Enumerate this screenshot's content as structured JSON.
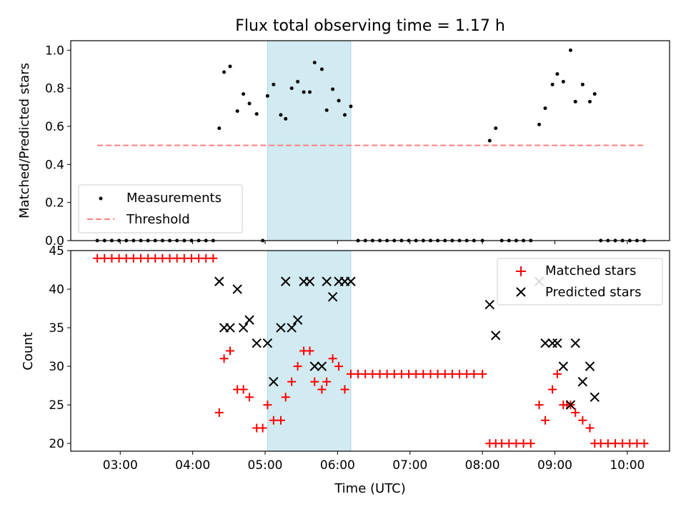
{
  "figure": {
    "title": "Flux total observing time = 1.17 h"
  },
  "colors": {
    "measurement": "#000000",
    "threshold": "#ff7f7f",
    "matched": "#ff0000",
    "predicted": "#000000",
    "shade": "#add8e6"
  },
  "chart_data": [
    {
      "type": "scatter",
      "panel": "top",
      "xlabel": "",
      "ylabel": "Matched/Predicted stars",
      "xlim": [
        "02:19",
        "10:35"
      ],
      "ylim": [
        0,
        1.05
      ],
      "yticks": [
        "0.0",
        "0.2",
        "0.4",
        "0.6",
        "0.8",
        "1.0"
      ],
      "shaded_interval": [
        "05:02",
        "06:11"
      ],
      "legend": {
        "placement": "lower left",
        "entries": [
          "Measurements",
          "Threshold"
        ]
      },
      "series": [
        {
          "name": "Measurements",
          "marker": "dot",
          "points": [
            [
              "02:41",
              0
            ],
            [
              "02:47",
              0
            ],
            [
              "02:53",
              0
            ],
            [
              "02:59",
              0
            ],
            [
              "03:05",
              0
            ],
            [
              "03:11",
              0
            ],
            [
              "03:17",
              0
            ],
            [
              "03:23",
              0
            ],
            [
              "03:29",
              0
            ],
            [
              "03:35",
              0
            ],
            [
              "03:41",
              0
            ],
            [
              "03:47",
              0
            ],
            [
              "03:53",
              0
            ],
            [
              "03:59",
              0
            ],
            [
              "04:05",
              0
            ],
            [
              "04:11",
              0
            ],
            [
              "04:17",
              0
            ],
            [
              "04:22",
              0.59
            ],
            [
              "04:26",
              0.885
            ],
            [
              "04:31",
              0.915
            ],
            [
              "04:37",
              0.68
            ],
            [
              "04:42",
              0.77
            ],
            [
              "04:47",
              0.72
            ],
            [
              "04:53",
              0.665
            ],
            [
              "04:58",
              0
            ],
            [
              "05:02",
              0.76
            ],
            [
              "05:07",
              0.82
            ],
            [
              "05:13",
              0.66
            ],
            [
              "05:17",
              0.64
            ],
            [
              "05:22",
              0.8
            ],
            [
              "05:27",
              0.835
            ],
            [
              "05:32",
              0.78
            ],
            [
              "05:37",
              0.78
            ],
            [
              "05:41",
              0.935
            ],
            [
              "05:47",
              0.9
            ],
            [
              "05:51",
              0.685
            ],
            [
              "05:56",
              0.795
            ],
            [
              "06:01",
              0.735
            ],
            [
              "06:06",
              0.66
            ],
            [
              "06:11",
              0.705
            ],
            [
              "06:17",
              0
            ],
            [
              "06:23",
              0
            ],
            [
              "06:29",
              0
            ],
            [
              "06:35",
              0
            ],
            [
              "06:41",
              0
            ],
            [
              "06:47",
              0
            ],
            [
              "06:53",
              0
            ],
            [
              "06:59",
              0
            ],
            [
              "07:05",
              0
            ],
            [
              "07:11",
              0
            ],
            [
              "07:17",
              0
            ],
            [
              "07:23",
              0
            ],
            [
              "07:29",
              0
            ],
            [
              "07:35",
              0
            ],
            [
              "07:41",
              0
            ],
            [
              "07:47",
              0
            ],
            [
              "07:53",
              0
            ],
            [
              "08:00",
              0
            ],
            [
              "08:06",
              0.525
            ],
            [
              "08:11",
              0.59
            ],
            [
              "08:16",
              0
            ],
            [
              "08:22",
              0
            ],
            [
              "08:28",
              0
            ],
            [
              "08:34",
              0
            ],
            [
              "08:40",
              0
            ],
            [
              "08:47",
              0.61
            ],
            [
              "08:52",
              0.695
            ],
            [
              "08:58",
              0.82
            ],
            [
              "09:02",
              0.875
            ],
            [
              "09:07",
              0.835
            ],
            [
              "09:13",
              1.0
            ],
            [
              "09:17",
              0.73
            ],
            [
              "09:23",
              0.82
            ],
            [
              "09:29",
              0.73
            ],
            [
              "09:33",
              0.77
            ],
            [
              "09:38",
              0
            ],
            [
              "09:44",
              0
            ],
            [
              "09:50",
              0
            ],
            [
              "09:56",
              0
            ],
            [
              "10:02",
              0
            ],
            [
              "10:08",
              0
            ],
            [
              "10:14",
              0
            ]
          ]
        },
        {
          "name": "Threshold",
          "style": "dashed",
          "points": [
            [
              "02:41",
              0.5
            ],
            [
              "10:14",
              0.5
            ]
          ]
        }
      ]
    },
    {
      "type": "scatter",
      "panel": "bottom",
      "xlabel": "Time (UTC)",
      "ylabel": "Count",
      "xlim": [
        "02:19",
        "10:35"
      ],
      "ylim": [
        19,
        45
      ],
      "xticks": [
        "03:00",
        "04:00",
        "05:00",
        "06:00",
        "07:00",
        "08:00",
        "09:00",
        "10:00"
      ],
      "yticks": [
        "20",
        "25",
        "30",
        "35",
        "40",
        "45"
      ],
      "shaded_interval": [
        "05:02",
        "06:11"
      ],
      "legend": {
        "placement": "upper right",
        "entries": [
          "Matched stars",
          "Predicted stars"
        ]
      },
      "series": [
        {
          "name": "Matched stars",
          "marker": "plus",
          "points": [
            [
              "02:41",
              44
            ],
            [
              "02:47",
              44
            ],
            [
              "02:53",
              44
            ],
            [
              "02:59",
              44
            ],
            [
              "03:05",
              44
            ],
            [
              "03:11",
              44
            ],
            [
              "03:17",
              44
            ],
            [
              "03:23",
              44
            ],
            [
              "03:29",
              44
            ],
            [
              "03:35",
              44
            ],
            [
              "03:41",
              44
            ],
            [
              "03:47",
              44
            ],
            [
              "03:53",
              44
            ],
            [
              "03:59",
              44
            ],
            [
              "04:05",
              44
            ],
            [
              "04:11",
              44
            ],
            [
              "04:17",
              44
            ],
            [
              "04:22",
              24
            ],
            [
              "04:26",
              31
            ],
            [
              "04:31",
              32
            ],
            [
              "04:37",
              27
            ],
            [
              "04:42",
              27
            ],
            [
              "04:47",
              26
            ],
            [
              "04:53",
              22
            ],
            [
              "04:58",
              22
            ],
            [
              "05:02",
              25
            ],
            [
              "05:07",
              23
            ],
            [
              "05:13",
              23
            ],
            [
              "05:17",
              26
            ],
            [
              "05:22",
              28
            ],
            [
              "05:27",
              30
            ],
            [
              "05:32",
              32
            ],
            [
              "05:37",
              32
            ],
            [
              "05:41",
              28
            ],
            [
              "05:47",
              27
            ],
            [
              "05:51",
              28
            ],
            [
              "05:56",
              31
            ],
            [
              "06:01",
              30
            ],
            [
              "06:06",
              27
            ],
            [
              "06:11",
              29
            ],
            [
              "06:17",
              29
            ],
            [
              "06:23",
              29
            ],
            [
              "06:29",
              29
            ],
            [
              "06:35",
              29
            ],
            [
              "06:41",
              29
            ],
            [
              "06:47",
              29
            ],
            [
              "06:53",
              29
            ],
            [
              "06:59",
              29
            ],
            [
              "07:05",
              29
            ],
            [
              "07:11",
              29
            ],
            [
              "07:17",
              29
            ],
            [
              "07:23",
              29
            ],
            [
              "07:29",
              29
            ],
            [
              "07:35",
              29
            ],
            [
              "07:41",
              29
            ],
            [
              "07:47",
              29
            ],
            [
              "07:53",
              29
            ],
            [
              "08:00",
              29
            ],
            [
              "08:06",
              20
            ],
            [
              "08:11",
              20
            ],
            [
              "08:16",
              20
            ],
            [
              "08:22",
              20
            ],
            [
              "08:28",
              20
            ],
            [
              "08:34",
              20
            ],
            [
              "08:40",
              20
            ],
            [
              "08:47",
              25
            ],
            [
              "08:52",
              23
            ],
            [
              "08:58",
              27
            ],
            [
              "09:02",
              29
            ],
            [
              "09:07",
              25
            ],
            [
              "09:10",
              25
            ],
            [
              "09:13",
              25
            ],
            [
              "09:17",
              24
            ],
            [
              "09:23",
              23
            ],
            [
              "09:29",
              22
            ],
            [
              "09:33",
              20
            ],
            [
              "09:38",
              20
            ],
            [
              "09:44",
              20
            ],
            [
              "09:50",
              20
            ],
            [
              "09:56",
              20
            ],
            [
              "10:02",
              20
            ],
            [
              "10:08",
              20
            ],
            [
              "10:14",
              20
            ]
          ]
        },
        {
          "name": "Predicted stars",
          "marker": "x",
          "points": [
            [
              "04:22",
              41
            ],
            [
              "04:26",
              35
            ],
            [
              "04:31",
              35
            ],
            [
              "04:37",
              40
            ],
            [
              "04:42",
              35
            ],
            [
              "04:47",
              36
            ],
            [
              "04:53",
              33
            ],
            [
              "05:02",
              33
            ],
            [
              "05:07",
              28
            ],
            [
              "05:13",
              35
            ],
            [
              "05:17",
              41
            ],
            [
              "05:22",
              35
            ],
            [
              "05:27",
              36
            ],
            [
              "05:32",
              41
            ],
            [
              "05:37",
              41
            ],
            [
              "05:41",
              30
            ],
            [
              "05:47",
              30
            ],
            [
              "05:51",
              41
            ],
            [
              "05:56",
              39
            ],
            [
              "06:01",
              41
            ],
            [
              "06:06",
              41
            ],
            [
              "06:11",
              41
            ],
            [
              "08:06",
              38
            ],
            [
              "08:11",
              34
            ],
            [
              "08:47",
              41
            ],
            [
              "08:52",
              33
            ],
            [
              "08:58",
              33
            ],
            [
              "09:02",
              33
            ],
            [
              "09:07",
              30
            ],
            [
              "09:13",
              25
            ],
            [
              "09:17",
              33
            ],
            [
              "09:23",
              28
            ],
            [
              "09:29",
              30
            ],
            [
              "09:33",
              26
            ]
          ]
        }
      ]
    }
  ]
}
